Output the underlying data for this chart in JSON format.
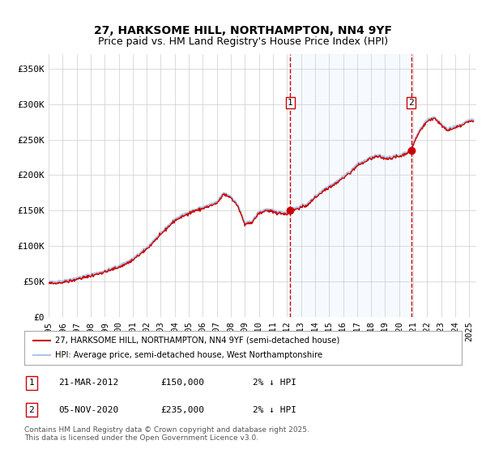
{
  "title": "27, HARKSOME HILL, NORTHAMPTON, NN4 9YF",
  "subtitle": "Price paid vs. HM Land Registry's House Price Index (HPI)",
  "legend_line1": "27, HARKSOME HILL, NORTHAMPTON, NN4 9YF (semi-detached house)",
  "legend_line2": "HPI: Average price, semi-detached house, West Northamptonshire",
  "annotation1_label": "1",
  "annotation1_date": "21-MAR-2012",
  "annotation1_price": 150000,
  "annotation1_year": 2012.22,
  "annotation2_label": "2",
  "annotation2_date": "05-NOV-2020",
  "annotation2_price": 235000,
  "annotation2_year": 2020.85,
  "footer": "Contains HM Land Registry data © Crown copyright and database right 2025.\nThis data is licensed under the Open Government Licence v3.0.",
  "table_row1": "1    21-MAR-2012         £150,000         2% ↓ HPI",
  "table_row2": "2    05-NOV-2020         £235,000         2% ↓ HPI",
  "hpi_color": "#aec6e8",
  "price_color": "#cc0000",
  "shading_color": "#ddeeff",
  "vline_color": "#cc0000",
  "background_color": "#ffffff",
  "grid_color": "#cccccc",
  "ylim": [
    0,
    370000
  ],
  "xlim": [
    1995,
    2025.5
  ],
  "yticks": [
    0,
    50000,
    100000,
    150000,
    200000,
    250000,
    300000,
    350000
  ],
  "ytick_labels": [
    "£0",
    "£50K",
    "£100K",
    "£150K",
    "£200K",
    "£250K",
    "£300K",
    "£350K"
  ],
  "xticks": [
    1995,
    1996,
    1997,
    1998,
    1999,
    2000,
    2001,
    2002,
    2003,
    2004,
    2005,
    2006,
    2007,
    2008,
    2009,
    2010,
    2011,
    2012,
    2013,
    2014,
    2015,
    2016,
    2017,
    2018,
    2019,
    2020,
    2021,
    2022,
    2023,
    2024,
    2025
  ]
}
